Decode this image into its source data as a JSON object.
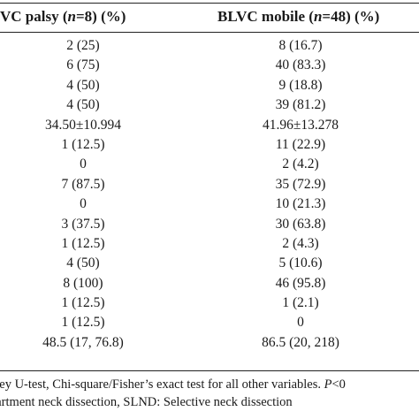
{
  "table": {
    "columns": [
      {
        "prefix": "VC palsy (",
        "italic": "n",
        "suffix": "=8) (%)"
      },
      {
        "prefix": "BLVC mobile (",
        "italic": "n",
        "suffix": "=48) (%)"
      }
    ],
    "rows": [
      [
        "2 (25)",
        "8 (16.7)"
      ],
      [
        "6 (75)",
        "40 (83.3)"
      ],
      [
        "4 (50)",
        "9 (18.8)"
      ],
      [
        "4 (50)",
        "39 (81.2)"
      ],
      [
        "34.50±10.994",
        "41.96±13.278"
      ],
      [
        "1 (12.5)",
        "11 (22.9)"
      ],
      [
        "0",
        "2 (4.2)"
      ],
      [
        "7 (87.5)",
        "35 (72.9)"
      ],
      [
        "0",
        "10 (21.3)"
      ],
      [
        "3 (37.5)",
        "30 (63.8)"
      ],
      [
        "1 (12.5)",
        "2 (4.3)"
      ],
      [
        "4 (50)",
        "5 (10.6)"
      ],
      [
        "8 (100)",
        "46 (95.8)"
      ],
      [
        "1 (12.5)",
        "1 (2.1)"
      ],
      [
        "1 (12.5)",
        "0"
      ],
      [
        "48.5 (17, 76.8)",
        "86.5 (20, 218)"
      ]
    ]
  },
  "footnotes": {
    "line1_text": "tney U-test, Chi-square/Fisher’s exact test for all other variables. ",
    "line1_italic": "P",
    "line1_tail": "<0",
    "line2_text": "partment neck dissection, SLND: Selective neck dissection"
  }
}
